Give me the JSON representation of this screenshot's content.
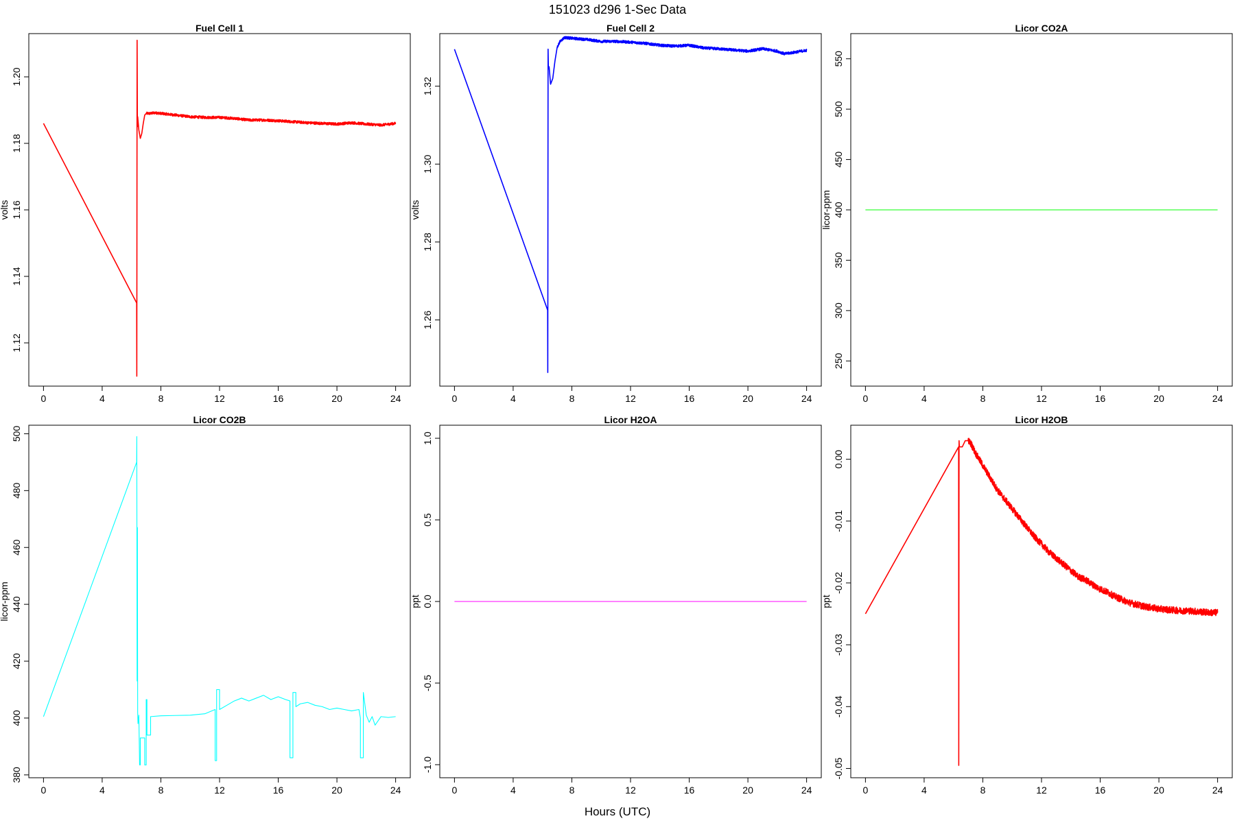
{
  "figure": {
    "title": "151023   d296   1-Sec Data",
    "xlabel": "Hours (UTC)"
  },
  "chart_data": [
    {
      "type": "line",
      "title": "Fuel Cell 1",
      "ylabel": "volts",
      "color": "#ff0000",
      "xlim": [
        -1,
        25
      ],
      "ylim": [
        1.107,
        1.213
      ],
      "xticks": [
        0,
        4,
        8,
        12,
        16,
        20,
        24
      ],
      "yticks": [
        1.12,
        1.14,
        1.16,
        1.18,
        1.2
      ],
      "ytick_labels": [
        "1.12",
        "1.14",
        "1.16",
        "1.18",
        "1.20"
      ],
      "series": [
        {
          "x": [
            0,
            6.35,
            6.36,
            6.38,
            6.4,
            6.42,
            6.5,
            6.6,
            6.7,
            6.8,
            6.9,
            7.0,
            7.1,
            7.3,
            7.6,
            8,
            9,
            10,
            11,
            12,
            13,
            14,
            15,
            16,
            17,
            18,
            19,
            20,
            21,
            22,
            23,
            24
          ],
          "y": [
            1.186,
            1.132,
            1.11,
            1.211,
            1.185,
            1.188,
            1.184,
            1.1815,
            1.183,
            1.186,
            1.1885,
            1.189,
            1.189,
            1.189,
            1.1892,
            1.189,
            1.1885,
            1.188,
            1.1878,
            1.1878,
            1.1875,
            1.187,
            1.187,
            1.1868,
            1.1865,
            1.1862,
            1.186,
            1.1858,
            1.1862,
            1.1858,
            1.1855,
            1.186
          ],
          "noise": 0.0008
        }
      ]
    },
    {
      "type": "line",
      "title": "Fuel Cell 2",
      "ylabel": "volts",
      "color": "#0000ff",
      "xlim": [
        -1,
        25
      ],
      "ylim": [
        1.243,
        1.3335
      ],
      "xticks": [
        0,
        4,
        8,
        12,
        16,
        20,
        24
      ],
      "yticks": [
        1.26,
        1.28,
        1.3,
        1.32
      ],
      "ytick_labels": [
        "1.26",
        "1.28",
        "1.30",
        "1.32"
      ],
      "series": [
        {
          "x": [
            0,
            6.35,
            6.36,
            6.38,
            6.4,
            6.45,
            6.55,
            6.7,
            6.85,
            7.0,
            7.2,
            7.5,
            8,
            9,
            10,
            11,
            12,
            13,
            14,
            15,
            16,
            17,
            18,
            19,
            20,
            21,
            22,
            22.5,
            23,
            24
          ],
          "y": [
            1.3295,
            1.2625,
            1.2465,
            1.3295,
            1.3245,
            1.325,
            1.3205,
            1.322,
            1.3265,
            1.33,
            1.3315,
            1.3325,
            1.3323,
            1.332,
            1.3315,
            1.3315,
            1.3313,
            1.331,
            1.3305,
            1.3303,
            1.3305,
            1.3298,
            1.3296,
            1.3293,
            1.329,
            1.3296,
            1.329,
            1.3283,
            1.3286,
            1.3292
          ],
          "noise": 0.0007
        }
      ]
    },
    {
      "type": "line",
      "title": "Licor CO2A",
      "ylabel": "licor-ppm",
      "color": "#00ff00",
      "xlim": [
        -1,
        25
      ],
      "ylim": [
        225,
        575
      ],
      "xticks": [
        0,
        4,
        8,
        12,
        16,
        20,
        24
      ],
      "yticks": [
        250,
        300,
        350,
        400,
        450,
        500,
        550
      ],
      "ytick_labels": [
        "250",
        "300",
        "350",
        "400",
        "450",
        "500",
        "550"
      ],
      "series": [
        {
          "x": [
            0,
            24
          ],
          "y": [
            400,
            400
          ],
          "noise": 0
        }
      ]
    },
    {
      "type": "line",
      "title": "Licor CO2B",
      "ylabel": "licor-ppm",
      "color": "#00ffff",
      "xlim": [
        -1,
        25
      ],
      "ylim": [
        379,
        503
      ],
      "xticks": [
        0,
        4,
        8,
        12,
        16,
        20,
        24
      ],
      "yticks": [
        380,
        400,
        420,
        440,
        460,
        480,
        500
      ],
      "ytick_labels": [
        "380",
        "400",
        "420",
        "440",
        "460",
        "480",
        "500"
      ],
      "series": [
        {
          "x": [
            0,
            6.35,
            6.36,
            6.38,
            6.4,
            6.42,
            6.44,
            6.5,
            6.55,
            6.6,
            6.6,
            6.9,
            6.9,
            7.0,
            7.0,
            7.05,
            7.05,
            7.3,
            7.3,
            8,
            10,
            11,
            11.7,
            11.7,
            11.8,
            11.8,
            12,
            12,
            12.5,
            13,
            13.5,
            14,
            14.5,
            15,
            15.5,
            16,
            16.5,
            16.8,
            16.8,
            17,
            17,
            17.2,
            17.2,
            17.5,
            18,
            18.5,
            19,
            19.5,
            20,
            20.5,
            21,
            21.5,
            21.6,
            21.6,
            21.8,
            21.8,
            22,
            22.2,
            22.4,
            22.6,
            23,
            23.5,
            24
          ],
          "y": [
            400.5,
            490,
            499,
            413,
            467,
            402,
            398,
            401,
            383.5,
            383.5,
            393,
            393,
            383.5,
            383.5,
            406.5,
            406.5,
            394,
            394,
            400.5,
            400.8,
            401,
            401.5,
            403,
            385,
            385,
            410,
            410,
            403,
            404.5,
            406,
            407,
            406,
            407,
            408,
            406.5,
            407.5,
            406.5,
            406,
            386,
            386,
            409,
            409,
            404,
            405,
            405.5,
            404.5,
            404,
            403,
            403.5,
            403,
            402.5,
            403,
            400,
            386,
            386,
            409,
            401,
            398.5,
            400.5,
            397.5,
            400.5,
            400.2,
            400.5
          ],
          "noise": 0
        }
      ]
    },
    {
      "type": "line",
      "title": "Licor H2OA",
      "ylabel": "ppt",
      "color": "#ff00ff",
      "xlim": [
        -1,
        25
      ],
      "ylim": [
        -1.08,
        1.08
      ],
      "xticks": [
        0,
        4,
        8,
        12,
        16,
        20,
        24
      ],
      "yticks": [
        -1.0,
        -0.5,
        0.0,
        0.5,
        1.0
      ],
      "ytick_labels": [
        "-1.0",
        "-0.5",
        "0.0",
        "0.5",
        "1.0"
      ],
      "series": [
        {
          "x": [
            0,
            24
          ],
          "y": [
            0,
            0
          ],
          "noise": 0
        }
      ]
    },
    {
      "type": "line",
      "title": "Licor H2OB",
      "ylabel": "ppt",
      "color": "#ff0000",
      "xlim": [
        -1,
        25
      ],
      "ylim": [
        -0.0515,
        0.0055
      ],
      "xticks": [
        0,
        4,
        8,
        12,
        16,
        20,
        24
      ],
      "yticks": [
        -0.05,
        -0.04,
        -0.03,
        -0.02,
        -0.01,
        0.0
      ],
      "ytick_labels": [
        "-0.05",
        "-0.04",
        "-0.03",
        "-0.02",
        "-0.01",
        "0.00"
      ],
      "series": [
        {
          "x": [
            0,
            6.35,
            6.36,
            6.38,
            6.4,
            6.6,
            6.8,
            7.0,
            7.2,
            7.5,
            8,
            8.5,
            9,
            9.5,
            10,
            10.5,
            11,
            11.5,
            12,
            12.5,
            13,
            13.5,
            14,
            14.5,
            15,
            15.5,
            16,
            16.5,
            17,
            17.5,
            18,
            18.5,
            19,
            19.5,
            20,
            20.5,
            21,
            21.5,
            22,
            22.5,
            23,
            23.5,
            24
          ],
          "y": [
            -0.025,
            0.002,
            -0.0495,
            0.003,
            0.002,
            0.002,
            0.003,
            0.003,
            0.0025,
            0.001,
            -0.001,
            -0.003,
            -0.005,
            -0.0065,
            -0.008,
            -0.0095,
            -0.011,
            -0.0125,
            -0.0137,
            -0.015,
            -0.016,
            -0.017,
            -0.018,
            -0.019,
            -0.0195,
            -0.0203,
            -0.021,
            -0.0215,
            -0.0222,
            -0.0227,
            -0.0232,
            -0.0235,
            -0.0238,
            -0.024,
            -0.0242,
            -0.0243,
            -0.0244,
            -0.0245,
            -0.0245,
            -0.0246,
            -0.0247,
            -0.0248,
            -0.0248
          ],
          "noise": 0.0011
        }
      ]
    }
  ]
}
